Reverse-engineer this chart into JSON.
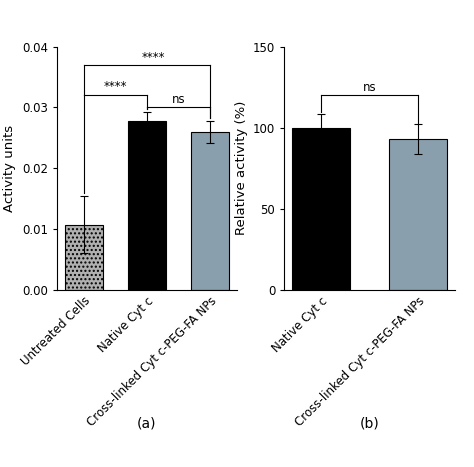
{
  "panel_a": {
    "categories": [
      "Untreated Cells",
      "Native Cyt c",
      "Cross-linked Cyt c-PEG-FA NPs"
    ],
    "values": [
      0.0107,
      0.0277,
      0.026
    ],
    "errors": [
      0.0047,
      0.0015,
      0.0018
    ],
    "bar_colors": [
      "dotted_gray",
      "#000000",
      "#8a9fad"
    ],
    "ylabel": "Activity units",
    "ylim": [
      0,
      0.04
    ],
    "yticks": [
      0.0,
      0.01,
      0.02,
      0.03,
      0.04
    ],
    "panel_label": "(a)"
  },
  "panel_b": {
    "categories": [
      "Native Cyt c",
      "Cross-linked Cyt c-PEG-FA NPs"
    ],
    "values": [
      100.0,
      93.0
    ],
    "errors": [
      8.5,
      9.0
    ],
    "bar_colors": [
      "#000000",
      "#8a9fad"
    ],
    "ylabel": "Relative activity (%)",
    "ylim": [
      0,
      150
    ],
    "yticks": [
      0,
      50,
      100,
      150
    ],
    "panel_label": "(b)"
  },
  "bar_width": 0.6,
  "tick_fontsize": 8.5,
  "label_fontsize": 9.5,
  "panel_label_fontsize": 10,
  "sig_fontsize": 8.5,
  "background_color": "#ffffff",
  "dotted_bar_facecolor": "#b0b0b0",
  "dot_hatch": "....",
  "gray_bar_color": "#8a9fad"
}
